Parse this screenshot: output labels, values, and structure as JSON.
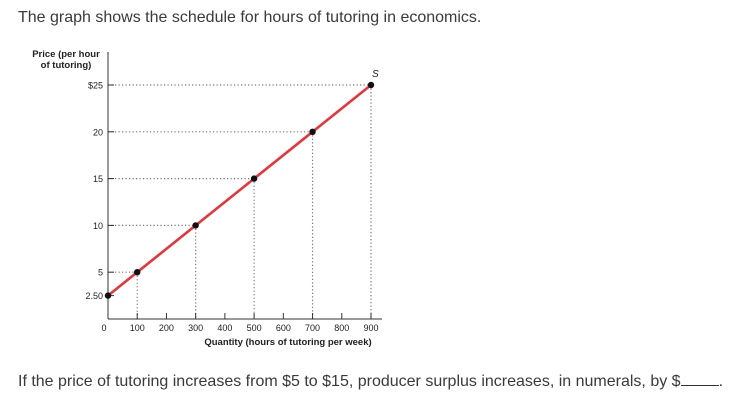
{
  "question": {
    "prompt": "The graph shows the schedule for hours of tutoring in economics.",
    "ask_prefix": "If the price of tutoring increases from $5 to $15, producer surplus increases, in numerals, by $",
    "ask_suffix": "."
  },
  "chart_data": {
    "type": "line",
    "ylabel_line1": "Price (per hour",
    "ylabel_line2": "of tutoring)",
    "xlabel": "Quantity (hours of tutoring per week)",
    "series": [
      {
        "name": "S",
        "x": [
          0,
          100,
          300,
          500,
          700,
          900
        ],
        "y": [
          2.5,
          5,
          10,
          15,
          20,
          25
        ]
      }
    ],
    "xlim": [
      0,
      900
    ],
    "ylim": [
      0,
      25
    ],
    "x_ticks": [
      100,
      200,
      300,
      400,
      500,
      600,
      700,
      800,
      900
    ],
    "x_tick_labels": [
      "100",
      "200",
      "300",
      "400",
      "500",
      "600",
      "700",
      "800",
      "900"
    ],
    "origin_label": "0",
    "y_ticks": [
      2.5,
      5,
      10,
      15,
      20,
      25
    ],
    "y_tick_labels": [
      "2.50",
      "5",
      "10",
      "15",
      "20",
      "$25"
    ],
    "dotted_guides": true,
    "line_color": "#e8343c",
    "point_color": "#111111",
    "grid": false
  }
}
